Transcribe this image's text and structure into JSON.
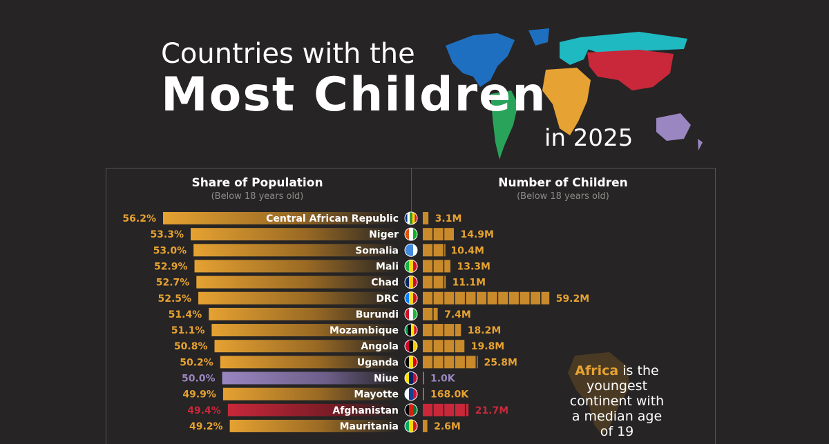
{
  "header": {
    "line1": "Countries with the",
    "line2": "Most Children",
    "line3": "in 2025"
  },
  "left_panel": {
    "title": "Share of Population",
    "subtitle": "(Below 18 years old)"
  },
  "right_panel": {
    "title": "Number of Children",
    "subtitle": "(Below 18 years old)"
  },
  "note": {
    "highlight": "Africa",
    "line1_rest": " is the",
    "line2": "youngest",
    "line3": "continent with",
    "line4": "a median age",
    "line5": "of 19"
  },
  "colors": {
    "africa": "#e6a232",
    "oceania": "#9a86c0",
    "asia": "#c8283a",
    "background": "#262424"
  },
  "chart_data": {
    "type": "bar",
    "categories": [
      "Central African Republic",
      "Niger",
      "Somalia",
      "Mali",
      "Chad",
      "DRC",
      "Burundi",
      "Mozambique",
      "Angola",
      "Uganda",
      "Niue",
      "Mayotte",
      "Afghanistan",
      "Mauritania"
    ],
    "share_labels": [
      "56.2%",
      "53.3%",
      "53.0%",
      "52.9%",
      "52.7%",
      "52.5%",
      "51.4%",
      "51.1%",
      "50.8%",
      "50.2%",
      "50.0%",
      "49.9%",
      "49.4%",
      "49.2%"
    ],
    "share_values": [
      56.2,
      53.3,
      53.0,
      52.9,
      52.7,
      52.5,
      51.4,
      51.1,
      50.8,
      50.2,
      50.0,
      49.9,
      49.4,
      49.2
    ],
    "children_labels": [
      "3.1M",
      "14.9M",
      "10.4M",
      "13.3M",
      "11.1M",
      "59.2M",
      "7.4M",
      "18.2M",
      "19.8M",
      "25.8M",
      "1.0K",
      "168.0K",
      "21.7M",
      "2.6M"
    ],
    "children_millions": [
      3.1,
      14.9,
      10.4,
      13.3,
      11.1,
      59.2,
      7.4,
      18.2,
      19.8,
      25.8,
      0.001,
      0.168,
      21.7,
      2.6
    ],
    "region": [
      "africa",
      "africa",
      "africa",
      "africa",
      "africa",
      "africa",
      "africa",
      "africa",
      "africa",
      "africa",
      "oceania",
      "africa",
      "asia",
      "africa"
    ],
    "flag_colors": [
      [
        "#003082",
        "#ffffff",
        "#289728",
        "#ffce00",
        "#d21034"
      ],
      [
        "#e05206",
        "#ffffff",
        "#0db02b"
      ],
      [
        "#4189dd",
        "#4189dd",
        "#ffffff"
      ],
      [
        "#14b53a",
        "#fcd116",
        "#ce1126"
      ],
      [
        "#002664",
        "#fecb00",
        "#c60c30"
      ],
      [
        "#007fff",
        "#f7d618",
        "#ce1021"
      ],
      [
        "#ce1126",
        "#ffffff",
        "#1eb53a"
      ],
      [
        "#009a44",
        "#000000",
        "#fce100",
        "#d21034"
      ],
      [
        "#cc092f",
        "#000000",
        "#ffcb00"
      ],
      [
        "#000000",
        "#fcdc04",
        "#d90000"
      ],
      [
        "#fedd00",
        "#012169",
        "#c8102e"
      ],
      [
        "#ffffff",
        "#1a3d8f",
        "#d21034"
      ],
      [
        "#000000",
        "#d32011",
        "#007a36"
      ],
      [
        "#00a95c",
        "#ffd700",
        "#d01c1f"
      ]
    ]
  }
}
